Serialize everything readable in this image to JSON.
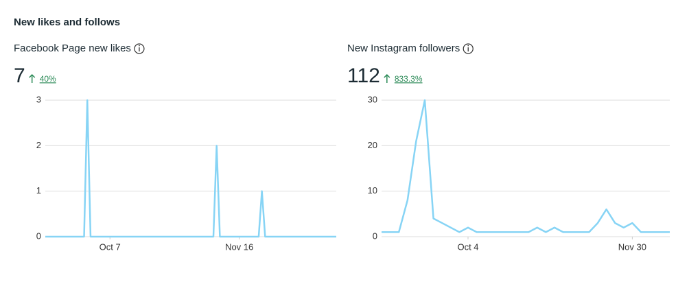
{
  "header": {
    "title": "New likes and follows"
  },
  "chart_data": [
    {
      "type": "line",
      "title": "Facebook Page new likes",
      "total": 7,
      "change": "40%",
      "x": [
        0,
        12,
        13,
        14,
        52,
        53,
        54,
        66,
        67,
        68,
        90
      ],
      "series": [
        {
          "color": "#87d4f5",
          "values": [
            0,
            0,
            3,
            0,
            0,
            2,
            0,
            0,
            1,
            0,
            0
          ]
        }
      ],
      "xlim": [
        0,
        90
      ],
      "xticks": [
        {
          "value": 20,
          "label": "Oct 7"
        },
        {
          "value": 60,
          "label": "Nov 16"
        }
      ],
      "ylim": [
        0,
        3
      ],
      "yticks": [
        0,
        1,
        2,
        3
      ],
      "grid": true
    },
    {
      "type": "line",
      "title": "New Instagram followers",
      "total": 112,
      "change": "833.3%",
      "x": [
        0,
        6,
        9,
        12,
        15,
        18,
        27,
        30,
        33,
        51,
        54,
        57,
        60,
        63,
        72,
        75,
        78,
        81,
        84,
        87,
        90,
        100
      ],
      "series": [
        {
          "color": "#87d4f5",
          "values": [
            1,
            1,
            8,
            21,
            30,
            4,
            1,
            2,
            1,
            1,
            2,
            1,
            2,
            1,
            1,
            3,
            6,
            3,
            2,
            3,
            1,
            1
          ]
        }
      ],
      "xlim": [
        0,
        100
      ],
      "xticks": [
        {
          "value": 30,
          "label": "Oct 4"
        },
        {
          "value": 87,
          "label": "Nov 30"
        }
      ],
      "ylim": [
        0,
        30
      ],
      "yticks": [
        0,
        10,
        20,
        30
      ],
      "grid": true
    }
  ]
}
